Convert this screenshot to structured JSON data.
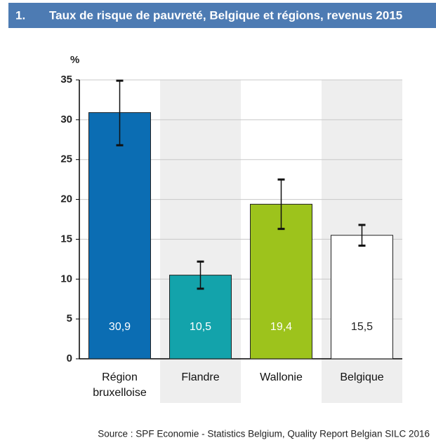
{
  "chart_data": {
    "type": "bar",
    "number": "1.",
    "title": "Taux de risque de pauvreté, Belgique et régions, revenus 2015",
    "y_label": "%",
    "categories": [
      "Région bruxelloise",
      "Flandre",
      "Wallonie",
      "Belgique"
    ],
    "values": [
      30.9,
      10.5,
      19.4,
      15.5
    ],
    "value_labels": [
      "30,9",
      "10,5",
      "19,4",
      "15,5"
    ],
    "lower": [
      26.8,
      8.8,
      16.3,
      14.2
    ],
    "upper": [
      34.9,
      12.2,
      22.5,
      16.8
    ],
    "colors": [
      "#0b6db3",
      "#13a3ab",
      "#9dc31c",
      "#ffffff"
    ],
    "ylim": [
      0,
      35
    ],
    "yticks": [
      0,
      5,
      10,
      15,
      20,
      25,
      30,
      35
    ],
    "grid": true,
    "source": "Source : SPF Economie - Statistics Belgium, Quality Report Belgian SILC 2016"
  }
}
